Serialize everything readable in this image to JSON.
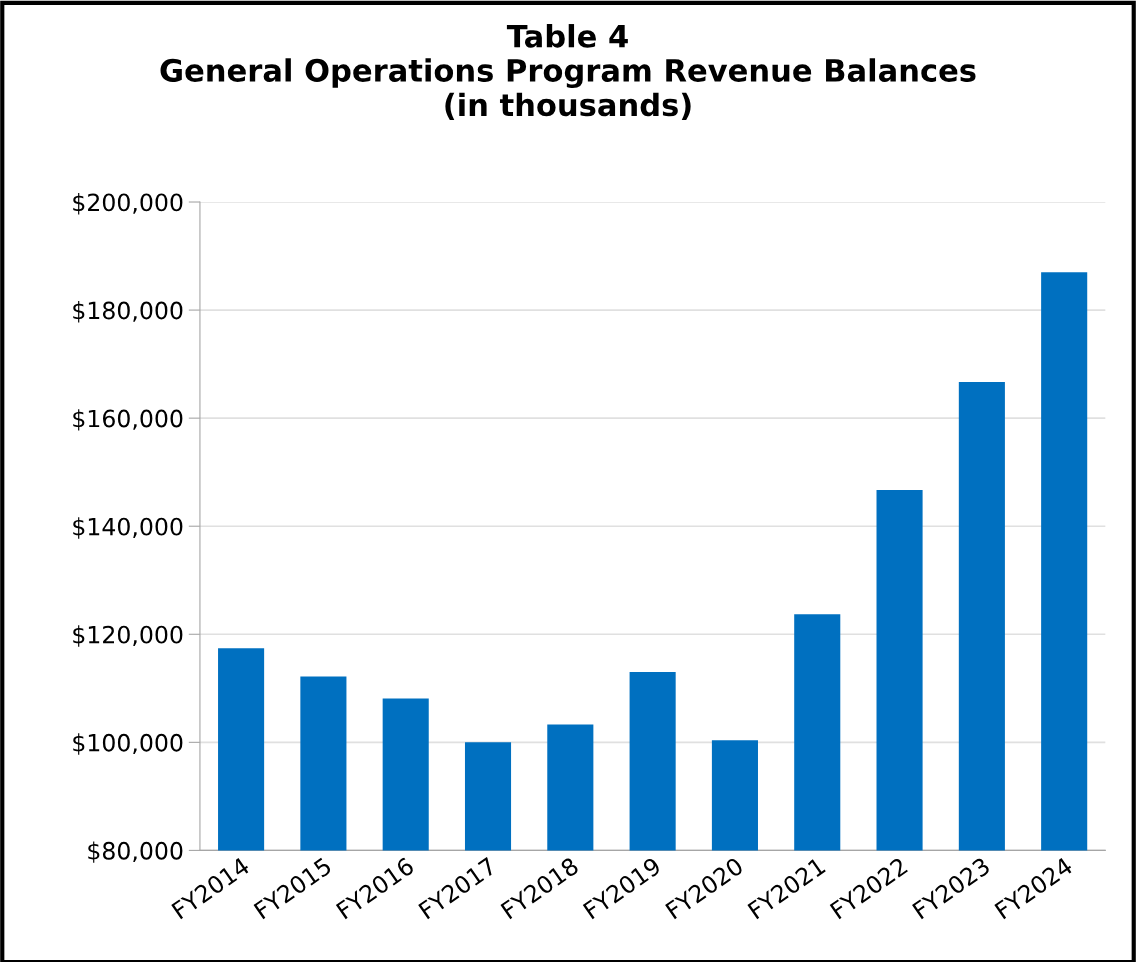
{
  "chart_data": {
    "type": "bar",
    "title": "Table 4\nGeneral Operations Program Revenue Balances\n(in thousands)",
    "categories": [
      "FY2014",
      "FY2015",
      "FY2016",
      "FY2017",
      "FY2018",
      "FY2019",
      "FY2020",
      "FY2021",
      "FY2022",
      "FY2023",
      "FY2024"
    ],
    "values": [
      117400,
      112200,
      108100,
      100000,
      103300,
      113000,
      100400,
      123700,
      146700,
      166700,
      187000
    ],
    "color": "#0070c0",
    "ylim": [
      80000,
      200000
    ],
    "yticks": [
      {
        "value": 80000,
        "label": "$80,000"
      },
      {
        "value": 100000,
        "label": "$100,000"
      },
      {
        "value": 120000,
        "label": "$120,000"
      },
      {
        "value": 140000,
        "label": "$140,000"
      },
      {
        "value": 160000,
        "label": "$160,000"
      },
      {
        "value": 180000,
        "label": "$180,000"
      },
      {
        "value": 200000,
        "label": "$200,000"
      }
    ],
    "grid": "y"
  }
}
